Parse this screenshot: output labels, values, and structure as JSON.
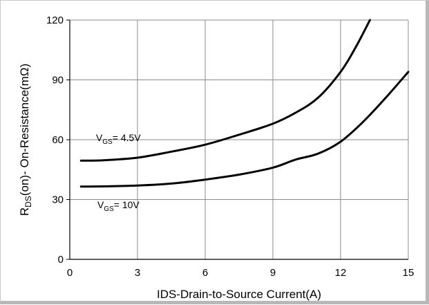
{
  "chart_data": {
    "type": "line",
    "xlabel": "IDS-Drain-to-Source  Current(A)",
    "ylabel": {
      "main": "R",
      "sub": "DS",
      "rest": "(on)- On-Resistance(mΩ)"
    },
    "xlim": [
      0,
      15
    ],
    "ylim": [
      0,
      120
    ],
    "xticks": [
      0,
      3,
      6,
      9,
      12,
      15
    ],
    "yticks": [
      0,
      30,
      60,
      90,
      120
    ],
    "grid": true,
    "series": [
      {
        "label": {
          "main": "V",
          "sub": "GS",
          "rest": "= 4.5V"
        },
        "x": [
          0.5,
          1.5,
          3,
          4.5,
          6,
          7.5,
          9,
          10,
          11,
          12,
          12.7,
          13.3
        ],
        "y": [
          49.5,
          49.7,
          51,
          54,
          57.5,
          62.5,
          68,
          73.5,
          81,
          94,
          107,
          120
        ]
      },
      {
        "label": {
          "main": "V",
          "sub": "GS",
          "rest": "= 10V"
        },
        "x": [
          0.5,
          1.5,
          3,
          4.5,
          6,
          7.5,
          9,
          10,
          11,
          12,
          13,
          14,
          15
        ],
        "y": [
          36.5,
          36.6,
          37,
          38,
          40,
          42.5,
          46,
          50,
          53,
          59,
          69,
          81,
          94
        ]
      }
    ]
  }
}
